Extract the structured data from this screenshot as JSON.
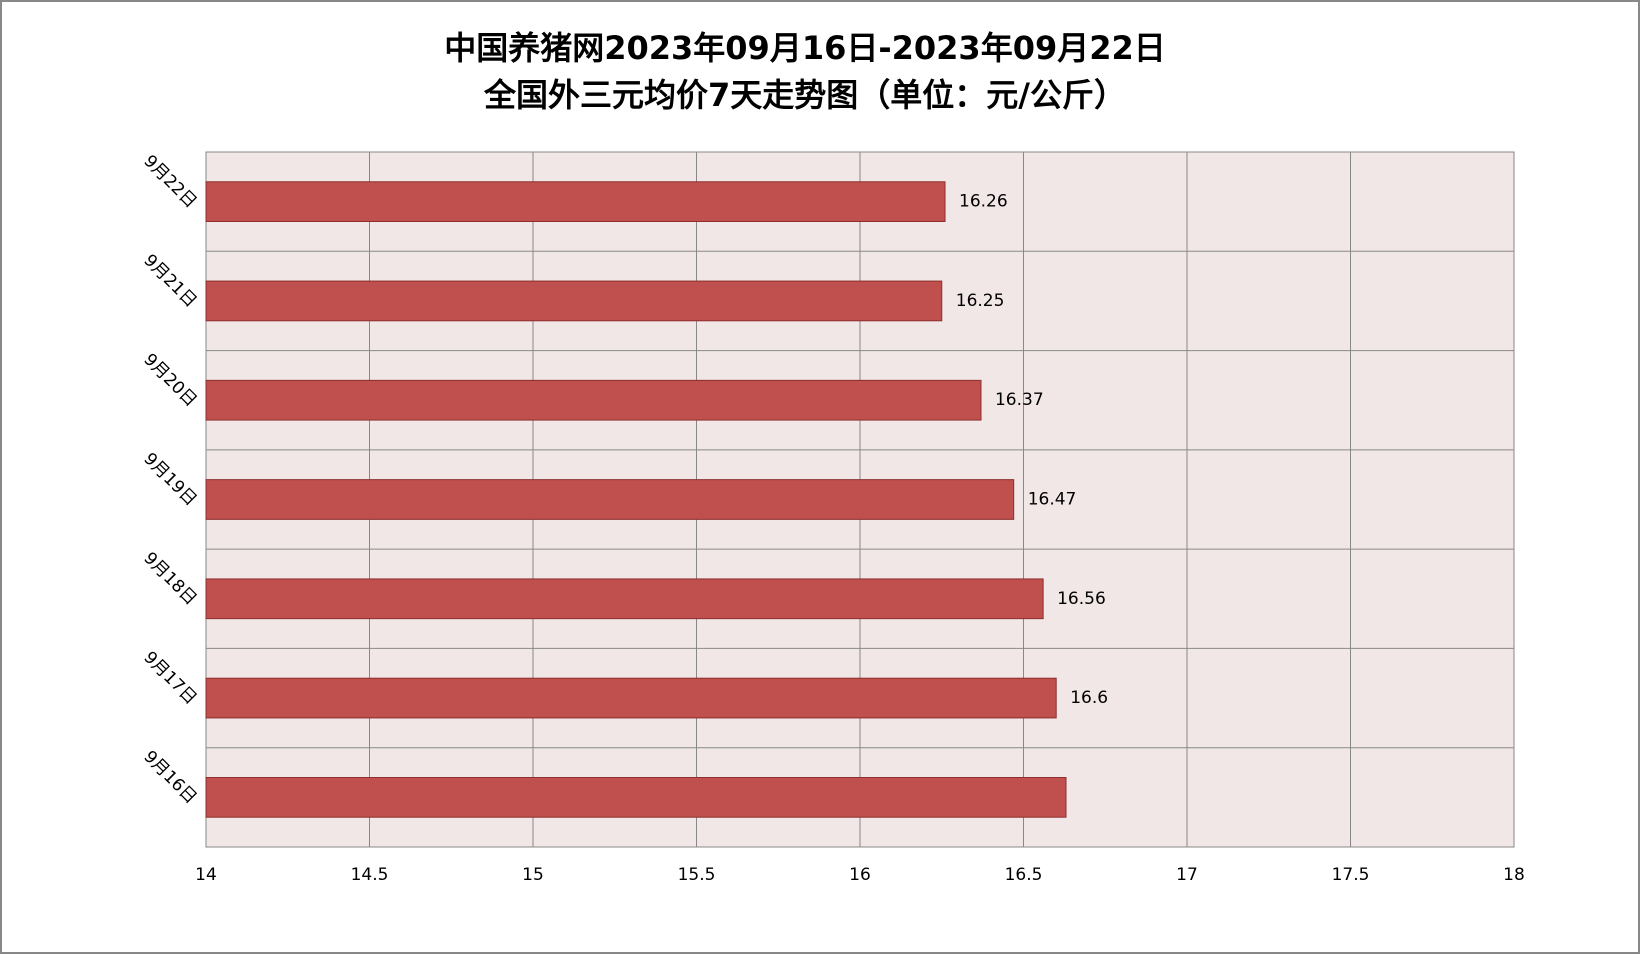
{
  "chart_data": {
    "type": "barh",
    "title": "中国养猪网2023年09月16日-2023年09月22日",
    "subtitle": "全国外三元均价7天走势图（单位：元/公斤）",
    "categories": [
      "9月16日",
      "9月17日",
      "9月18日",
      "9月19日",
      "9月20日",
      "9月21日",
      "9月22日"
    ],
    "values": [
      16.63,
      16.6,
      16.56,
      16.47,
      16.37,
      16.25,
      16.26
    ],
    "value_labels": [
      null,
      "16.6",
      "16.56",
      "16.47",
      "16.37",
      "16.25",
      "16.26"
    ],
    "color": "#c0504d",
    "xlim": [
      14,
      18
    ],
    "xticks": [
      14,
      14.5,
      15,
      15.5,
      16,
      16.5,
      17,
      17.5,
      18
    ],
    "grid": true
  }
}
